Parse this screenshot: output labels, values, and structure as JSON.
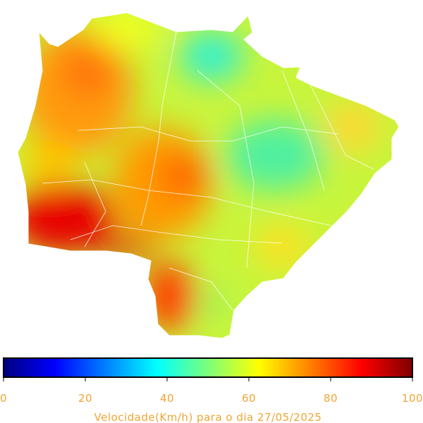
{
  "colorbar": {
    "label": "Velocidade(Km/h) para o dia 27/05/2025",
    "lim": [
      0,
      100
    ],
    "ticks": [
      0,
      20,
      40,
      60,
      80,
      100
    ],
    "colors": [
      "#00007f",
      "#0000ff",
      "#0080ff",
      "#00ffff",
      "#7dff7a",
      "#ffff00",
      "#ff8000",
      "#ff0000",
      "#7f0000"
    ]
  }
}
